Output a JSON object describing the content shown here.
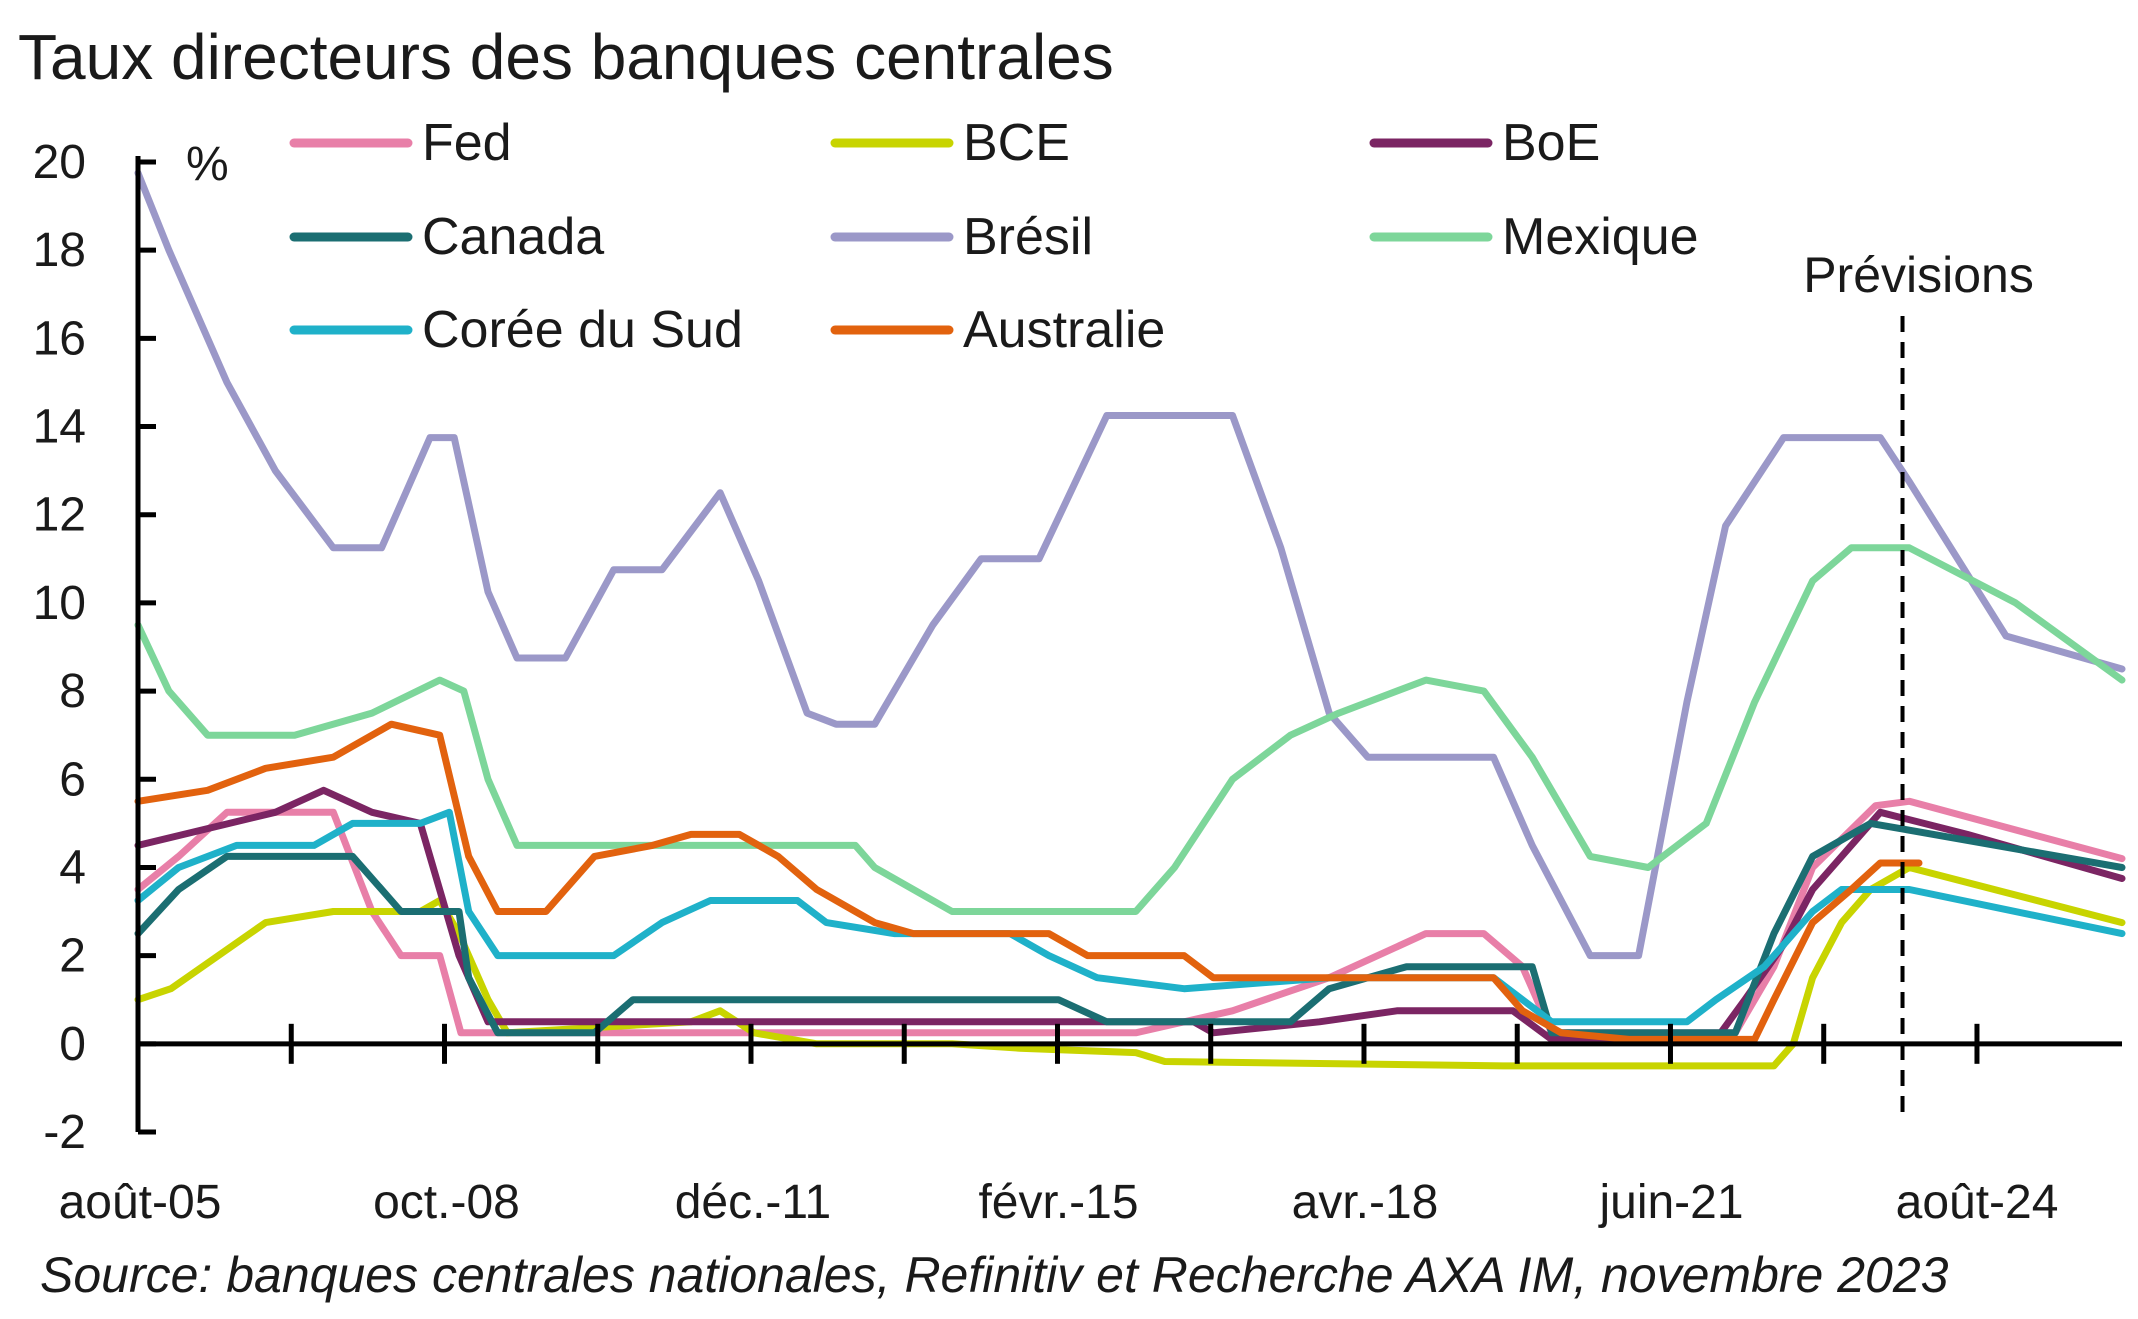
{
  "chart_data": {
    "type": "line",
    "title": "Taux directeurs des banques centrales",
    "source": "Source: banques centrales nationales, Refinitiv et Recherche AXA IM, novembre 2023",
    "y_unit": "%",
    "ylim": [
      -2,
      20
    ],
    "yticks": [
      "-2",
      "0",
      "2",
      "4",
      "6",
      "8",
      "10",
      "12",
      "14",
      "16",
      "18",
      "20"
    ],
    "xlim": [
      2005.58,
      2026.1
    ],
    "xticks": [
      {
        "label": "août-05",
        "x": 2005.58
      },
      {
        "label": "oct.-08",
        "x": 2008.75
      },
      {
        "label": "déc.-11",
        "x": 2011.92
      },
      {
        "label": "févr.-15",
        "x": 2015.08
      },
      {
        "label": "avr.-18",
        "x": 2018.25
      },
      {
        "label": "juin-21",
        "x": 2021.42
      },
      {
        "label": "août-24",
        "x": 2024.58
      }
    ],
    "forecast_marker": {
      "label": "Prévisions",
      "x": 2023.83
    },
    "legend_position": "top",
    "series": [
      {
        "name": "Fed",
        "color": "#e87fa8",
        "points": [
          [
            2005.58,
            3.5
          ],
          [
            2006.0,
            4.25
          ],
          [
            2006.5,
            5.25
          ],
          [
            2007.6,
            5.25
          ],
          [
            2008.0,
            3.0
          ],
          [
            2008.3,
            2.0
          ],
          [
            2008.7,
            2.0
          ],
          [
            2008.92,
            0.25
          ],
          [
            2015.9,
            0.25
          ],
          [
            2016.9,
            0.75
          ],
          [
            2017.9,
            1.5
          ],
          [
            2018.9,
            2.5
          ],
          [
            2019.5,
            2.5
          ],
          [
            2019.9,
            1.75
          ],
          [
            2020.2,
            0.25
          ],
          [
            2022.1,
            0.25
          ],
          [
            2022.5,
            1.75
          ],
          [
            2022.9,
            4.0
          ],
          [
            2023.55,
            5.4
          ],
          [
            2023.9,
            5.5
          ],
          [
            2026.1,
            4.2
          ]
        ]
      },
      {
        "name": "BCE",
        "color": "#c8d400",
        "points": [
          [
            2005.58,
            1.0
          ],
          [
            2005.92,
            1.25
          ],
          [
            2006.9,
            2.75
          ],
          [
            2007.6,
            3.0
          ],
          [
            2008.5,
            3.0
          ],
          [
            2008.7,
            3.25
          ],
          [
            2008.9,
            2.5
          ],
          [
            2009.2,
            1.0
          ],
          [
            2009.4,
            0.25
          ],
          [
            2011.3,
            0.5
          ],
          [
            2011.6,
            0.75
          ],
          [
            2011.95,
            0.25
          ],
          [
            2012.6,
            0.0
          ],
          [
            2014.0,
            0.0
          ],
          [
            2014.7,
            -0.1
          ],
          [
            2015.9,
            -0.2
          ],
          [
            2016.2,
            -0.4
          ],
          [
            2019.7,
            -0.5
          ],
          [
            2022.5,
            -0.5
          ],
          [
            2022.7,
            0.0
          ],
          [
            2022.9,
            1.5
          ],
          [
            2023.2,
            2.75
          ],
          [
            2023.5,
            3.5
          ],
          [
            2023.9,
            4.0
          ],
          [
            2026.1,
            2.75
          ]
        ]
      },
      {
        "name": "BoE",
        "color": "#7b2563",
        "points": [
          [
            2005.58,
            4.5
          ],
          [
            2007.0,
            5.25
          ],
          [
            2007.5,
            5.75
          ],
          [
            2008.0,
            5.25
          ],
          [
            2008.5,
            5.0
          ],
          [
            2008.9,
            2.0
          ],
          [
            2009.2,
            0.5
          ],
          [
            2016.5,
            0.5
          ],
          [
            2016.7,
            0.25
          ],
          [
            2017.8,
            0.5
          ],
          [
            2018.6,
            0.75
          ],
          [
            2019.8,
            0.75
          ],
          [
            2020.2,
            0.1
          ],
          [
            2021.9,
            0.1
          ],
          [
            2022.2,
            1.0
          ],
          [
            2022.6,
            2.25
          ],
          [
            2022.9,
            3.5
          ],
          [
            2023.6,
            5.25
          ],
          [
            2024.5,
            4.75
          ],
          [
            2026.1,
            3.75
          ]
        ]
      },
      {
        "name": "Canada",
        "color": "#1b6e72",
        "points": [
          [
            2005.58,
            2.5
          ],
          [
            2006.0,
            3.5
          ],
          [
            2006.5,
            4.25
          ],
          [
            2007.8,
            4.25
          ],
          [
            2008.3,
            3.0
          ],
          [
            2008.9,
            3.0
          ],
          [
            2009.0,
            1.5
          ],
          [
            2009.3,
            0.25
          ],
          [
            2010.3,
            0.25
          ],
          [
            2010.7,
            1.0
          ],
          [
            2015.1,
            1.0
          ],
          [
            2015.6,
            0.5
          ],
          [
            2017.5,
            0.5
          ],
          [
            2017.9,
            1.25
          ],
          [
            2018.7,
            1.75
          ],
          [
            2020.0,
            1.75
          ],
          [
            2020.2,
            0.25
          ],
          [
            2022.1,
            0.25
          ],
          [
            2022.5,
            2.5
          ],
          [
            2022.9,
            4.25
          ],
          [
            2023.5,
            5.0
          ],
          [
            2026.1,
            4.0
          ]
        ]
      },
      {
        "name": "Brésil",
        "color": "#9b98c8",
        "points": [
          [
            2005.58,
            19.75
          ],
          [
            2005.9,
            18.0
          ],
          [
            2006.5,
            15.0
          ],
          [
            2007.0,
            13.0
          ],
          [
            2007.6,
            11.25
          ],
          [
            2008.1,
            11.25
          ],
          [
            2008.6,
            13.75
          ],
          [
            2008.85,
            13.75
          ],
          [
            2009.2,
            10.25
          ],
          [
            2009.5,
            8.75
          ],
          [
            2010.0,
            8.75
          ],
          [
            2010.5,
            10.75
          ],
          [
            2011.0,
            10.75
          ],
          [
            2011.6,
            12.5
          ],
          [
            2012.0,
            10.5
          ],
          [
            2012.5,
            7.5
          ],
          [
            2012.8,
            7.25
          ],
          [
            2013.2,
            7.25
          ],
          [
            2013.8,
            9.5
          ],
          [
            2014.3,
            11.0
          ],
          [
            2014.9,
            11.0
          ],
          [
            2015.6,
            14.25
          ],
          [
            2016.9,
            14.25
          ],
          [
            2017.4,
            11.25
          ],
          [
            2017.9,
            7.5
          ],
          [
            2018.3,
            6.5
          ],
          [
            2019.6,
            6.5
          ],
          [
            2020.0,
            4.5
          ],
          [
            2020.6,
            2.0
          ],
          [
            2021.1,
            2.0
          ],
          [
            2021.6,
            7.75
          ],
          [
            2022.0,
            11.75
          ],
          [
            2022.6,
            13.75
          ],
          [
            2023.6,
            13.75
          ],
          [
            2023.9,
            12.75
          ],
          [
            2024.9,
            9.25
          ],
          [
            2026.1,
            8.5
          ]
        ]
      },
      {
        "name": "Mexique",
        "color": "#7dd69a",
        "points": [
          [
            2005.58,
            9.5
          ],
          [
            2005.9,
            8.0
          ],
          [
            2006.3,
            7.0
          ],
          [
            2007.2,
            7.0
          ],
          [
            2008.0,
            7.5
          ],
          [
            2008.7,
            8.25
          ],
          [
            2008.95,
            8.0
          ],
          [
            2009.2,
            6.0
          ],
          [
            2009.5,
            4.5
          ],
          [
            2013.0,
            4.5
          ],
          [
            2013.2,
            4.0
          ],
          [
            2014.0,
            3.0
          ],
          [
            2015.9,
            3.0
          ],
          [
            2016.3,
            4.0
          ],
          [
            2016.9,
            6.0
          ],
          [
            2017.5,
            7.0
          ],
          [
            2018.0,
            7.5
          ],
          [
            2018.9,
            8.25
          ],
          [
            2019.5,
            8.0
          ],
          [
            2020.0,
            6.5
          ],
          [
            2020.6,
            4.25
          ],
          [
            2021.2,
            4.0
          ],
          [
            2021.8,
            5.0
          ],
          [
            2022.3,
            7.75
          ],
          [
            2022.9,
            10.5
          ],
          [
            2023.3,
            11.25
          ],
          [
            2023.9,
            11.25
          ],
          [
            2025.0,
            10.0
          ],
          [
            2026.1,
            8.25
          ]
        ]
      },
      {
        "name": "Corée du Sud",
        "color": "#1fb1c9",
        "points": [
          [
            2005.58,
            3.25
          ],
          [
            2006.0,
            4.0
          ],
          [
            2006.6,
            4.5
          ],
          [
            2007.4,
            4.5
          ],
          [
            2007.8,
            5.0
          ],
          [
            2008.5,
            5.0
          ],
          [
            2008.8,
            5.25
          ],
          [
            2009.0,
            3.0
          ],
          [
            2009.3,
            2.0
          ],
          [
            2010.5,
            2.0
          ],
          [
            2011.0,
            2.75
          ],
          [
            2011.5,
            3.25
          ],
          [
            2012.4,
            3.25
          ],
          [
            2012.7,
            2.75
          ],
          [
            2013.4,
            2.5
          ],
          [
            2014.6,
            2.5
          ],
          [
            2015.0,
            2.0
          ],
          [
            2015.5,
            1.5
          ],
          [
            2016.4,
            1.25
          ],
          [
            2017.9,
            1.5
          ],
          [
            2019.6,
            1.5
          ],
          [
            2020.2,
            0.5
          ],
          [
            2021.6,
            0.5
          ],
          [
            2021.9,
            1.0
          ],
          [
            2022.4,
            1.75
          ],
          [
            2022.9,
            3.0
          ],
          [
            2023.2,
            3.5
          ],
          [
            2023.9,
            3.5
          ],
          [
            2026.1,
            2.5
          ]
        ]
      },
      {
        "name": "Australie",
        "color": "#e2620e",
        "points": [
          [
            2005.58,
            5.5
          ],
          [
            2006.3,
            5.75
          ],
          [
            2006.9,
            6.25
          ],
          [
            2007.6,
            6.5
          ],
          [
            2008.2,
            7.25
          ],
          [
            2008.7,
            7.0
          ],
          [
            2009.0,
            4.25
          ],
          [
            2009.3,
            3.0
          ],
          [
            2009.8,
            3.0
          ],
          [
            2010.3,
            4.25
          ],
          [
            2010.9,
            4.5
          ],
          [
            2011.3,
            4.75
          ],
          [
            2011.8,
            4.75
          ],
          [
            2012.2,
            4.25
          ],
          [
            2012.6,
            3.5
          ],
          [
            2013.2,
            2.75
          ],
          [
            2013.6,
            2.5
          ],
          [
            2015.0,
            2.5
          ],
          [
            2015.4,
            2.0
          ],
          [
            2016.4,
            2.0
          ],
          [
            2016.7,
            1.5
          ],
          [
            2019.6,
            1.5
          ],
          [
            2019.9,
            0.75
          ],
          [
            2020.3,
            0.25
          ],
          [
            2021.0,
            0.1
          ],
          [
            2022.3,
            0.1
          ],
          [
            2022.5,
            1.0
          ],
          [
            2022.9,
            2.75
          ],
          [
            2023.3,
            3.5
          ],
          [
            2023.6,
            4.1
          ],
          [
            2024.0,
            4.1
          ]
        ]
      }
    ]
  }
}
